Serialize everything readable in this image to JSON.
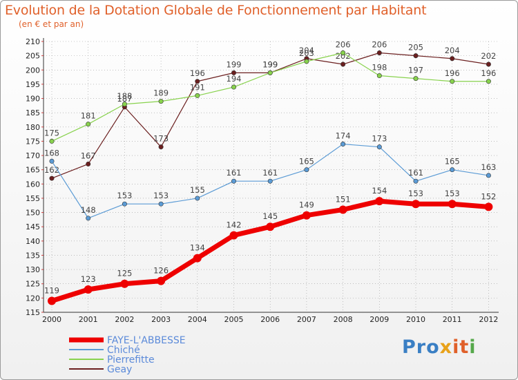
{
  "title": "Evolution de la Dotation Globale de Fonctionnement par Habitant",
  "subtitle": "(en € et par an)",
  "logo": {
    "text": "Proxiti",
    "parts": [
      "Pro",
      "x",
      "it",
      "i"
    ]
  },
  "colors": {
    "title": "#e0602a",
    "faye": "#ee0000",
    "chiche": "#5b9bd5",
    "pierrefitte": "#88d24d",
    "geay": "#6b1f1f",
    "grid": "#999999"
  },
  "chart_data": {
    "type": "line",
    "title": "Evolution de la Dotation Globale de Fonctionnement par Habitant",
    "ylabel": "(en € et par an)",
    "xlabel": "",
    "ylim": [
      115,
      210
    ],
    "yticks": [
      115,
      120,
      125,
      130,
      135,
      140,
      145,
      150,
      155,
      160,
      165,
      170,
      175,
      180,
      185,
      190,
      195,
      200,
      205,
      210
    ],
    "categories": [
      "2000",
      "2001",
      "2002",
      "2003",
      "2004",
      "2005",
      "2006",
      "2007",
      "2008",
      "2009",
      "2010",
      "2011",
      "2012"
    ],
    "legend_position": "bottom-left",
    "series": [
      {
        "name": "FAYE-L'ABBESSE",
        "color": "#ee0000",
        "values": [
          119,
          123,
          125,
          126,
          134,
          142,
          145,
          149,
          151,
          154,
          153,
          153,
          152
        ]
      },
      {
        "name": "Chiché",
        "color": "#5b9bd5",
        "values": [
          168,
          148,
          153,
          153,
          155,
          161,
          161,
          165,
          174,
          173,
          161,
          165,
          163
        ]
      },
      {
        "name": "Pierrefitte",
        "color": "#88d24d",
        "values": [
          175,
          181,
          188,
          189,
          191,
          194,
          199,
          203,
          206,
          198,
          197,
          196,
          196
        ]
      },
      {
        "name": "Geay",
        "color": "#6b1f1f",
        "values": [
          162,
          167,
          187,
          173,
          196,
          199,
          199,
          204,
          202,
          206,
          205,
          204,
          202
        ]
      }
    ]
  }
}
